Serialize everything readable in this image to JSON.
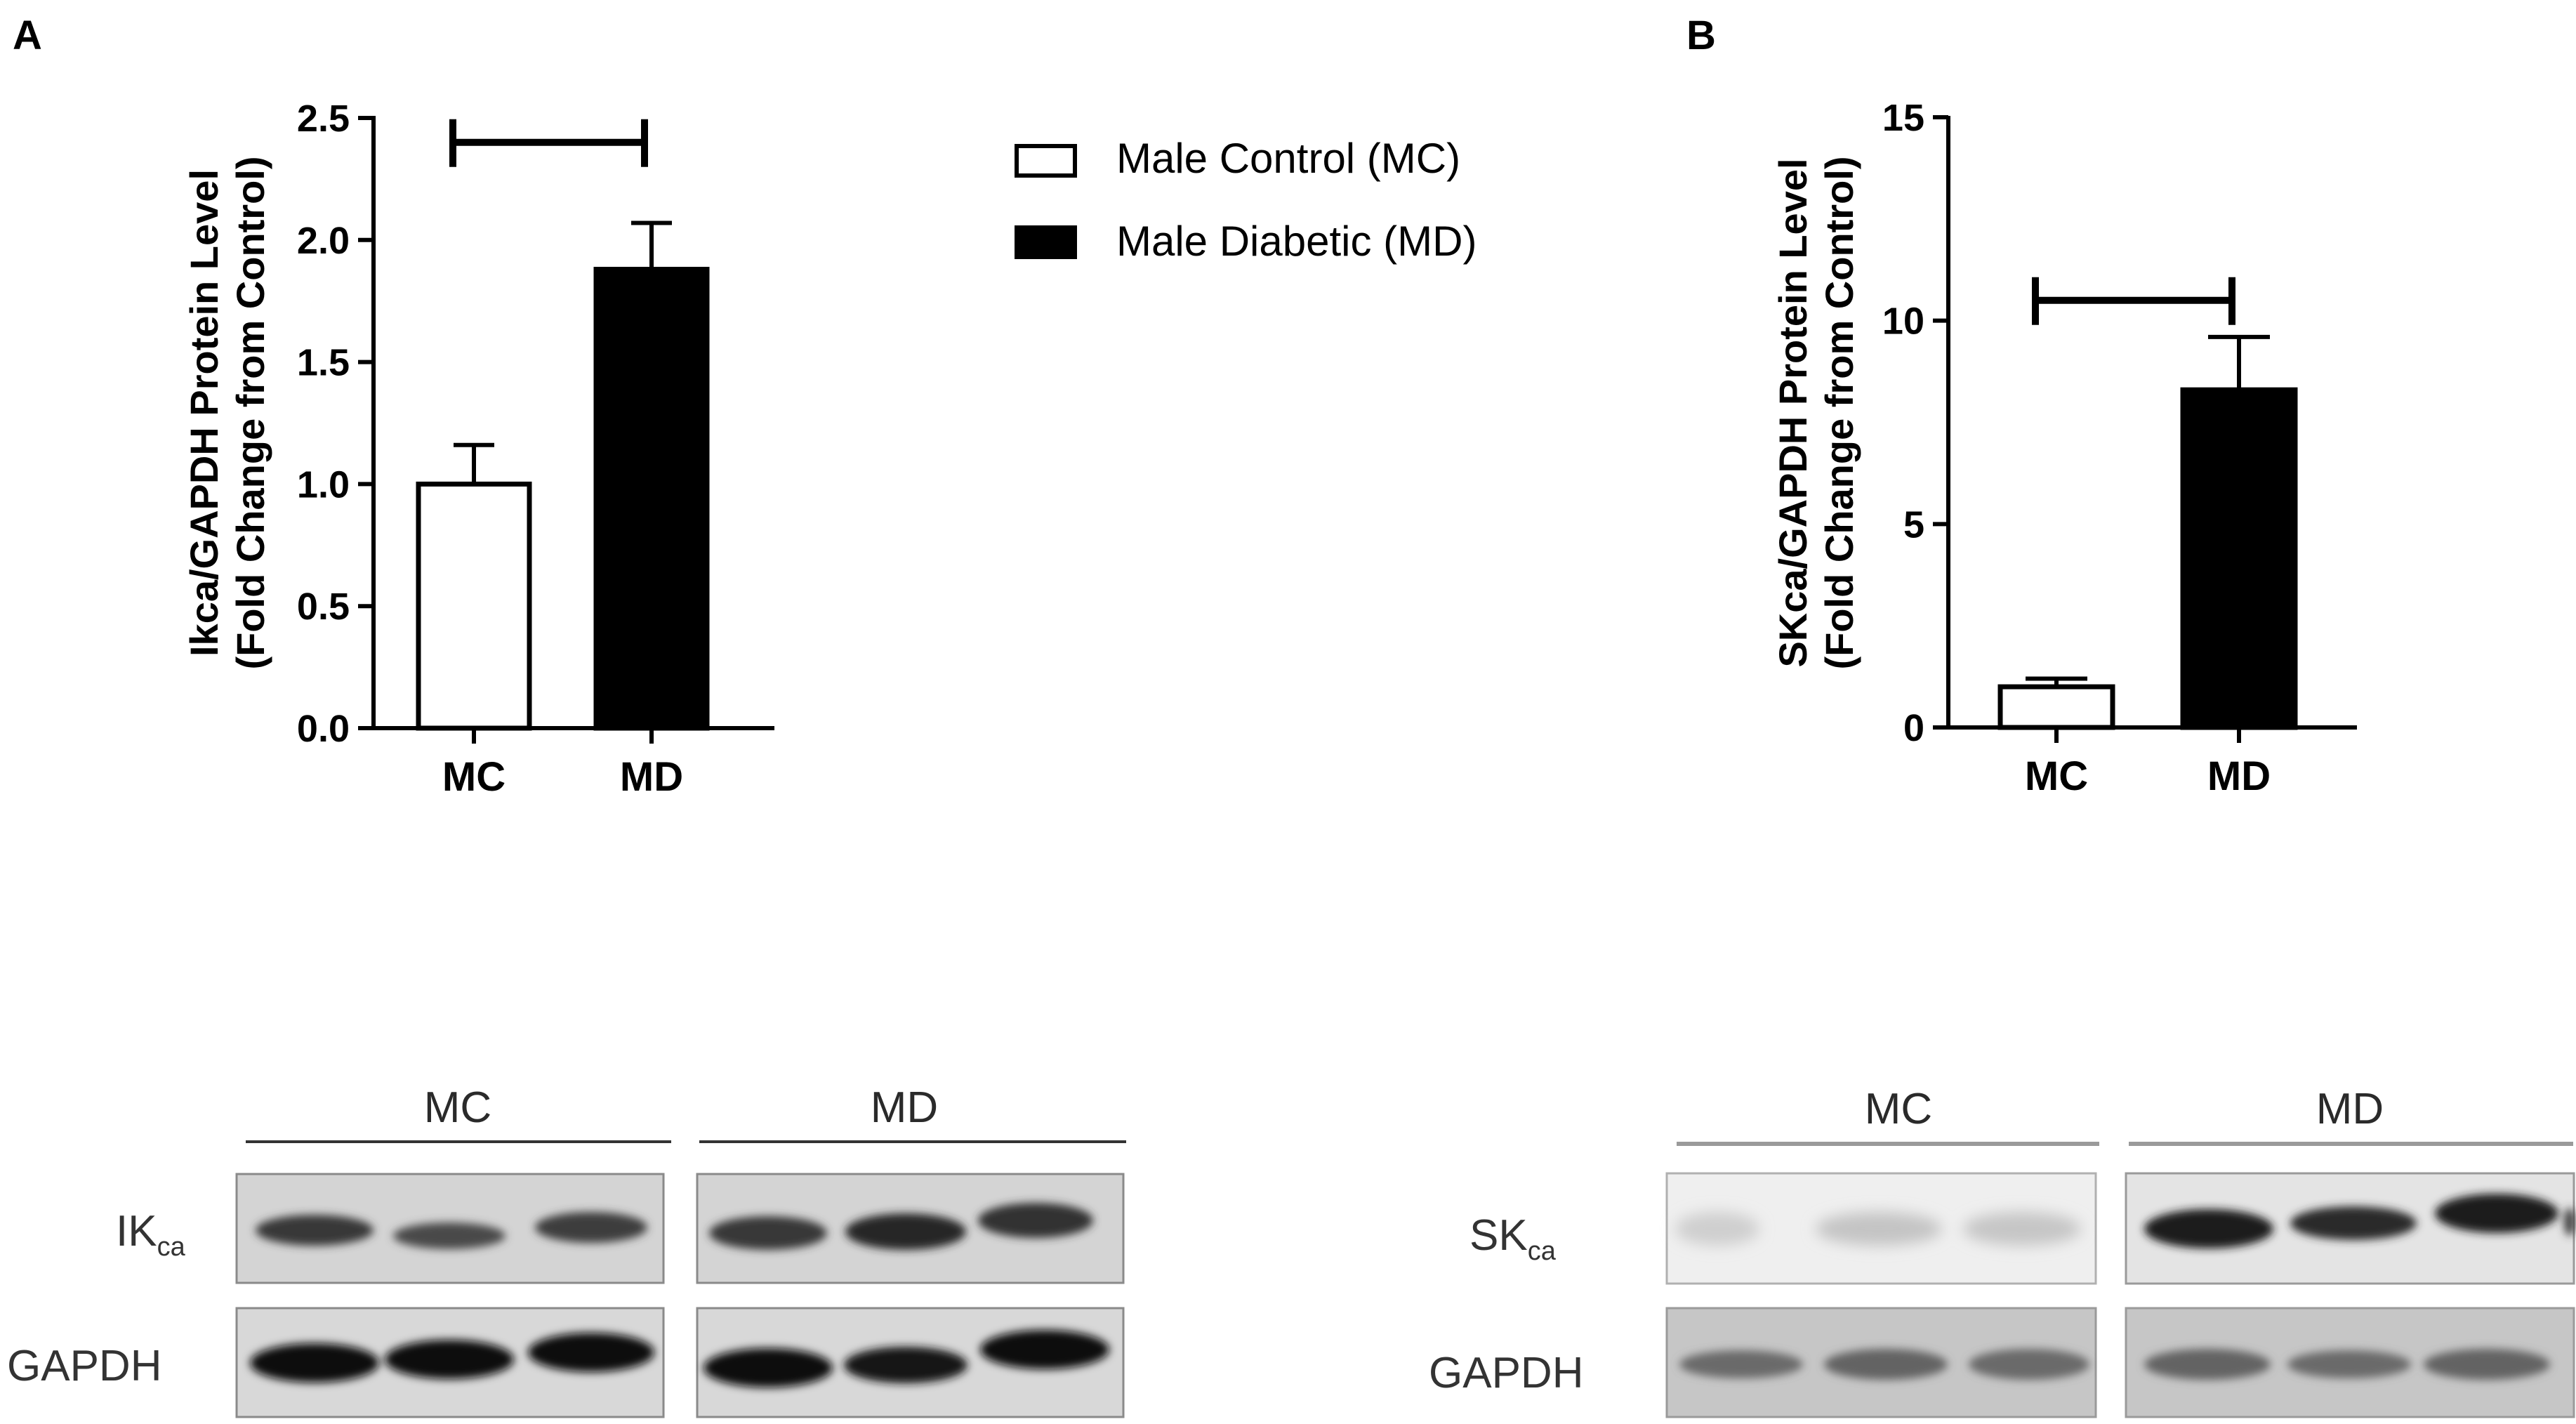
{
  "panel_labels": [
    "A",
    "B"
  ],
  "legend": {
    "items": [
      {
        "label": "Male Control (MC)",
        "fill": "#ffffff"
      },
      {
        "label": "Male Diabetic (MD)",
        "fill": "#000000"
      }
    ]
  },
  "chart_data": [
    {
      "type": "bar",
      "panel": "A",
      "categories": [
        "MC",
        "MD"
      ],
      "values": [
        1.0,
        1.88
      ],
      "errors": [
        0.16,
        0.19
      ],
      "fills": [
        "#ffffff",
        "#000000"
      ],
      "ylabel_line1": "Ikca/GAPDH Protein Level",
      "ylabel_line2": "(Fold Change from Control)",
      "ylim": [
        0,
        2.5
      ],
      "yticks": [
        "0.0",
        "0.5",
        "1.0",
        "1.5",
        "2.0",
        "2.5"
      ],
      "significance_y": 2.4
    },
    {
      "type": "bar",
      "panel": "B",
      "categories": [
        "MC",
        "MD"
      ],
      "values": [
        1.0,
        8.3
      ],
      "errors": [
        0.2,
        1.3
      ],
      "fills": [
        "#ffffff",
        "#000000"
      ],
      "ylabel_line1": "SKca/GAPDH Protein Level",
      "ylabel_line2": "(Fold Change from Control)",
      "ylim": [
        0,
        15
      ],
      "yticks": [
        "0",
        "5",
        "10",
        "15"
      ],
      "significance_y": 10.5
    }
  ],
  "blots": [
    {
      "group_labels": [
        "MC",
        "MD"
      ],
      "rows": [
        {
          "label_main": "IK",
          "label_sub": "ca"
        },
        {
          "label_main": "GAPDH",
          "label_sub": ""
        }
      ]
    },
    {
      "group_labels": [
        "MC",
        "MD"
      ],
      "rows": [
        {
          "label_main": "SK",
          "label_sub": "ca"
        },
        {
          "label_main": "GAPDH",
          "label_sub": ""
        }
      ]
    }
  ]
}
